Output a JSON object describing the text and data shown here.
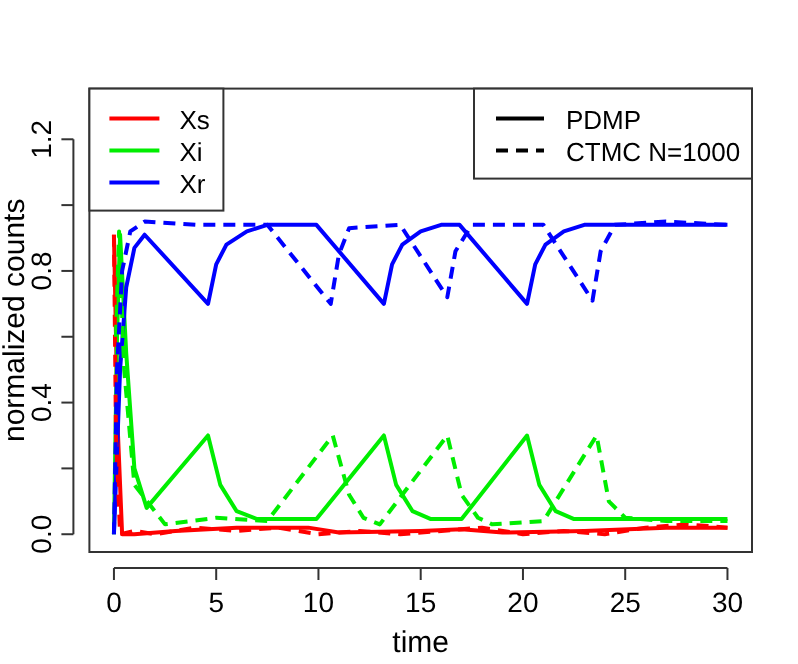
{
  "chart_data": {
    "type": "line",
    "xlabel": "time",
    "ylabel": "normalized counts",
    "xlim": [
      -1.2,
      31.2
    ],
    "ylim": [
      -0.054,
      1.354
    ],
    "xticks": [
      0,
      5,
      10,
      15,
      20,
      25,
      30
    ],
    "yticks": [
      {
        "value": 0,
        "label": "0.0"
      },
      {
        "value": 0.2,
        "label": null
      },
      0.4,
      {
        "value": 0.6,
        "label": null
      },
      0.8,
      {
        "value": 1.0,
        "label": null
      },
      1.2
    ],
    "grid": false,
    "legend": "top left",
    "annotations": [
      "PDMP",
      "CTMC N=1000"
    ],
    "series": [
      {
        "name": "Xs",
        "color": "#ff0000",
        "line_style": "solid",
        "x": [
          0,
          0.2,
          0.4,
          1,
          3,
          6,
          9.5,
          11,
          15,
          17,
          19,
          23,
          27,
          30
        ],
        "values": [
          0.91,
          0.3,
          0.0,
          0.0,
          0.01,
          0.02,
          0.02,
          0.005,
          0.01,
          0.015,
          0.005,
          0.01,
          0.02,
          0.02
        ]
      },
      {
        "name": "Xi",
        "color": "#00ee00",
        "line_style": "solid",
        "x": [
          0,
          0.15,
          0.3,
          0.6,
          1.0,
          1.6,
          4.6,
          5.2,
          6,
          7,
          9.9,
          13.2,
          13.8,
          14.6,
          15.5,
          17,
          20.2,
          20.8,
          21.6,
          22.5,
          30
        ],
        "values": [
          0.0,
          0.6,
          0.91,
          0.55,
          0.2,
          0.08,
          0.3,
          0.15,
          0.07,
          0.046,
          0.046,
          0.3,
          0.15,
          0.07,
          0.046,
          0.046,
          0.3,
          0.15,
          0.07,
          0.046,
          0.046
        ]
      },
      {
        "name": "Xr",
        "color": "#0000ff",
        "line_style": "solid",
        "x": [
          0,
          0.3,
          0.6,
          1.0,
          1.5,
          4.6,
          5.0,
          5.5,
          6.5,
          7.5,
          9.9,
          13.2,
          13.6,
          14.1,
          15,
          16,
          16.9,
          20.2,
          20.6,
          21.1,
          22,
          23,
          30
        ],
        "values": [
          0,
          0.5,
          0.75,
          0.87,
          0.91,
          0.7,
          0.82,
          0.88,
          0.92,
          0.94,
          0.94,
          0.7,
          0.82,
          0.88,
          0.92,
          0.94,
          0.94,
          0.7,
          0.82,
          0.88,
          0.92,
          0.94,
          0.94
        ]
      },
      {
        "color": "#ff0000",
        "line_style": "dashed",
        "x": [
          0,
          0.1,
          0.3,
          1,
          2,
          4,
          6,
          8,
          10,
          12,
          14,
          16,
          18,
          20,
          22,
          24,
          26,
          28,
          30
        ],
        "values": [
          0.91,
          0.3,
          0.0,
          0.01,
          0.0,
          0.02,
          0.01,
          0.02,
          0.0,
          0.01,
          0.0,
          0.01,
          0.02,
          0.0,
          0.01,
          0.0,
          0.02,
          0.03,
          0.02
        ]
      },
      {
        "color": "#00ee00",
        "line_style": "dashed",
        "x": [
          0.1,
          0.25,
          0.5,
          1,
          2.5,
          5,
          7.5,
          10.7,
          11.5,
          12.2,
          13,
          16.3,
          17,
          17.8,
          18.5,
          21,
          23.6,
          24.2,
          25,
          27,
          30
        ],
        "values": [
          0.6,
          0.92,
          0.5,
          0.15,
          0.03,
          0.05,
          0.04,
          0.3,
          0.12,
          0.05,
          0.03,
          0.3,
          0.12,
          0.05,
          0.03,
          0.04,
          0.3,
          0.1,
          0.05,
          0.04,
          0.04
        ]
      },
      {
        "color": "#0000ff",
        "line_style": "dashed",
        "x": [
          0,
          0.15,
          0.4,
          0.8,
          1.5,
          4,
          7.5,
          10.6,
          11,
          11.5,
          14,
          16.3,
          16.7,
          17.5,
          21,
          23.4,
          23.8,
          24.5,
          27,
          30
        ],
        "values": [
          0,
          0.5,
          0.8,
          0.92,
          0.95,
          0.94,
          0.94,
          0.7,
          0.85,
          0.93,
          0.94,
          0.72,
          0.86,
          0.94,
          0.94,
          0.71,
          0.86,
          0.94,
          0.95,
          0.94
        ]
      }
    ]
  }
}
